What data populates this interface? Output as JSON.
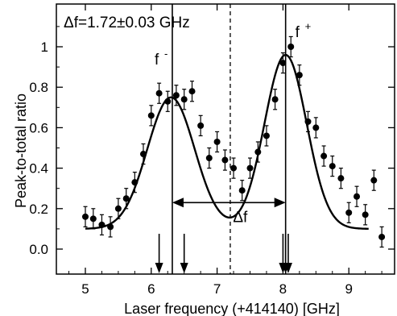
{
  "chart_data": {
    "type": "scatter",
    "xlabel": "Laser frequency (+414140) [GHz]",
    "ylabel": "Peak-to-total ratio",
    "xlim": [
      4.6,
      9.5
    ],
    "ylim": [
      -0.12,
      1.14
    ],
    "x_ticks": [
      5,
      6,
      7,
      8,
      9
    ],
    "y_ticks": [
      0.0,
      0.2,
      0.4,
      0.6,
      0.8,
      1
    ],
    "y_tick_labels": [
      "0.0",
      "0.2",
      "0.4",
      "0.6",
      "0.8",
      "1"
    ],
    "grid": false,
    "series": [
      {
        "kind": "points_with_errorbars",
        "points": [
          {
            "x": 5.0,
            "y": 0.16,
            "err": 0.05
          },
          {
            "x": 5.12,
            "y": 0.15,
            "err": 0.05
          },
          {
            "x": 5.25,
            "y": 0.12,
            "err": 0.05
          },
          {
            "x": 5.38,
            "y": 0.11,
            "err": 0.05
          },
          {
            "x": 5.5,
            "y": 0.2,
            "err": 0.05
          },
          {
            "x": 5.62,
            "y": 0.25,
            "err": 0.05
          },
          {
            "x": 5.75,
            "y": 0.33,
            "err": 0.05
          },
          {
            "x": 5.88,
            "y": 0.47,
            "err": 0.05
          },
          {
            "x": 6.0,
            "y": 0.66,
            "err": 0.05
          },
          {
            "x": 6.12,
            "y": 0.77,
            "err": 0.05
          },
          {
            "x": 6.25,
            "y": 0.73,
            "err": 0.05
          },
          {
            "x": 6.38,
            "y": 0.76,
            "err": 0.05
          },
          {
            "x": 6.5,
            "y": 0.74,
            "err": 0.05
          },
          {
            "x": 6.62,
            "y": 0.78,
            "err": 0.05
          },
          {
            "x": 6.75,
            "y": 0.61,
            "err": 0.05
          },
          {
            "x": 6.88,
            "y": 0.45,
            "err": 0.05
          },
          {
            "x": 7.0,
            "y": 0.53,
            "err": 0.05
          },
          {
            "x": 7.12,
            "y": 0.44,
            "err": 0.05
          },
          {
            "x": 7.25,
            "y": 0.4,
            "err": 0.05
          },
          {
            "x": 7.38,
            "y": 0.29,
            "err": 0.05
          },
          {
            "x": 7.5,
            "y": 0.4,
            "err": 0.05
          },
          {
            "x": 7.62,
            "y": 0.48,
            "err": 0.05
          },
          {
            "x": 7.75,
            "y": 0.56,
            "err": 0.05
          },
          {
            "x": 7.88,
            "y": 0.74,
            "err": 0.05
          },
          {
            "x": 8.0,
            "y": 0.92,
            "err": 0.05
          },
          {
            "x": 8.12,
            "y": 1.0,
            "err": 0.05
          },
          {
            "x": 8.25,
            "y": 0.86,
            "err": 0.05
          },
          {
            "x": 8.38,
            "y": 0.63,
            "err": 0.05
          },
          {
            "x": 8.5,
            "y": 0.6,
            "err": 0.05
          },
          {
            "x": 8.62,
            "y": 0.46,
            "err": 0.05
          },
          {
            "x": 8.75,
            "y": 0.41,
            "err": 0.05
          },
          {
            "x": 8.88,
            "y": 0.35,
            "err": 0.05
          },
          {
            "x": 9.0,
            "y": 0.18,
            "err": 0.05
          },
          {
            "x": 9.12,
            "y": 0.26,
            "err": 0.05
          },
          {
            "x": 9.25,
            "y": 0.17,
            "err": 0.05
          },
          {
            "x": 9.38,
            "y": 0.34,
            "err": 0.05
          },
          {
            "x": 9.5,
            "y": 0.06,
            "err": 0.05
          }
        ]
      },
      {
        "kind": "fit_curve",
        "model": "double_gaussian",
        "baseline": 0.1,
        "peaks": [
          {
            "center": 6.3,
            "amplitude": 0.65,
            "sigma": 0.36
          },
          {
            "center": 8.04,
            "amplitude": 0.86,
            "sigma": 0.32
          }
        ],
        "x_range": [
          5.0,
          9.3
        ]
      }
    ],
    "vertical_lines": [
      {
        "x": 6.32,
        "style": "solid",
        "label": "f",
        "superscript": "-"
      },
      {
        "x": 8.04,
        "style": "solid",
        "label": "f",
        "superscript": "+"
      },
      {
        "x": 7.2,
        "style": "dashed"
      }
    ],
    "delta_arrow": {
      "x_from": 6.32,
      "x_to": 8.04,
      "y": 0.23,
      "label": "Δf"
    },
    "annotation": "Δf=1.72±0.03 GHz",
    "bottom_arrows_x": [
      6.12,
      6.5,
      8.0,
      8.04,
      8.08
    ]
  }
}
